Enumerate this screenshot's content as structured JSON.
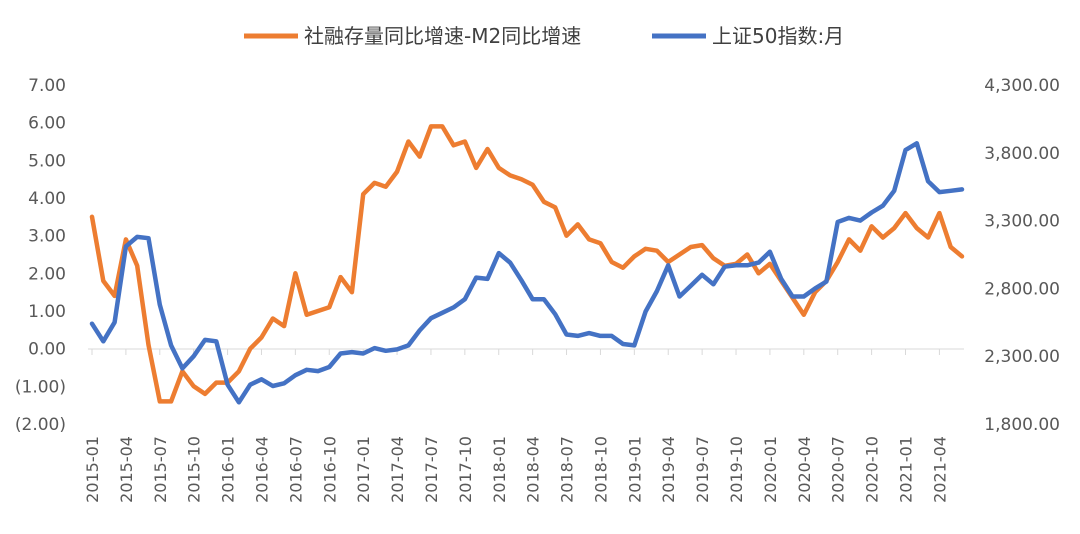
{
  "chart_data": {
    "type": "line",
    "title": "",
    "legend_position": "top-center",
    "grid": false,
    "x_tick_labels": [
      "2015-01",
      "2015-04",
      "2015-07",
      "2015-10",
      "2016-01",
      "2016-04",
      "2016-07",
      "2016-10",
      "2017-01",
      "2017-04",
      "2017-07",
      "2017-10",
      "2018-01",
      "2018-04",
      "2018-07",
      "2018-10",
      "2019-01",
      "2019-04",
      "2019-07",
      "2019-10",
      "2020-01",
      "2020-04",
      "2020-07",
      "2020-10",
      "2021-01",
      "2021-04"
    ],
    "left_axis": {
      "ylim": [
        -2,
        7
      ],
      "tick_labels": [
        "(2.00)",
        "(1.00)",
        "0.00",
        "1.00",
        "2.00",
        "3.00",
        "4.00",
        "5.00",
        "6.00",
        "7.00"
      ],
      "negative_color": "#C00000",
      "positive_color": "#595959"
    },
    "right_axis": {
      "ylim": [
        1800,
        4300
      ],
      "tick_labels": [
        "1,800.00",
        "2,300.00",
        "2,800.00",
        "3,300.00",
        "3,800.00",
        "4,300.00"
      ]
    },
    "series": [
      {
        "name": "社融存量同比增速-M2同比增速",
        "axis": "left",
        "color": "#ED7D31",
        "values": [
          3.5,
          1.8,
          1.4,
          2.9,
          2.2,
          0.1,
          -1.4,
          -1.4,
          -0.6,
          -1.0,
          -1.2,
          -0.9,
          -0.9,
          -0.6,
          0.0,
          0.3,
          0.8,
          0.6,
          2.0,
          0.9,
          1.0,
          1.1,
          1.9,
          1.5,
          4.1,
          4.4,
          4.3,
          4.7,
          5.5,
          5.1,
          5.9,
          5.9,
          5.4,
          5.5,
          4.8,
          5.3,
          4.8,
          4.6,
          4.5,
          4.35,
          3.9,
          3.75,
          3.0,
          3.3,
          2.9,
          2.8,
          2.3,
          2.15,
          2.45,
          2.65,
          2.6,
          2.3,
          2.5,
          2.7,
          2.75,
          2.4,
          2.2,
          2.25,
          2.5,
          2.0,
          2.25,
          1.8,
          1.35,
          0.9,
          1.5,
          1.8,
          2.3,
          2.9,
          2.6,
          3.25,
          2.95,
          3.2,
          3.6,
          3.2,
          2.95,
          3.6,
          2.7,
          2.45
        ]
      },
      {
        "name": "上证50指数:月",
        "axis": "right",
        "color": "#4472C4",
        "values": [
          2540,
          2410,
          2550,
          3110,
          3180,
          3170,
          2680,
          2380,
          2210,
          2300,
          2420,
          2410,
          2090,
          1960,
          2090,
          2130,
          2080,
          2100,
          2160,
          2200,
          2190,
          2220,
          2320,
          2330,
          2320,
          2360,
          2340,
          2350,
          2380,
          2490,
          2580,
          2620,
          2660,
          2720,
          2880,
          2870,
          3060,
          2990,
          2860,
          2720,
          2720,
          2610,
          2460,
          2450,
          2470,
          2450,
          2450,
          2390,
          2380,
          2630,
          2780,
          2970,
          2740,
          2820,
          2900,
          2830,
          2960,
          2970,
          2970,
          2990,
          3070,
          2870,
          2740,
          2740,
          2800,
          2850,
          3290,
          3320,
          3300,
          3360,
          3410,
          3520,
          3820,
          3870,
          3590,
          3510,
          3520,
          3530
        ]
      }
    ]
  }
}
